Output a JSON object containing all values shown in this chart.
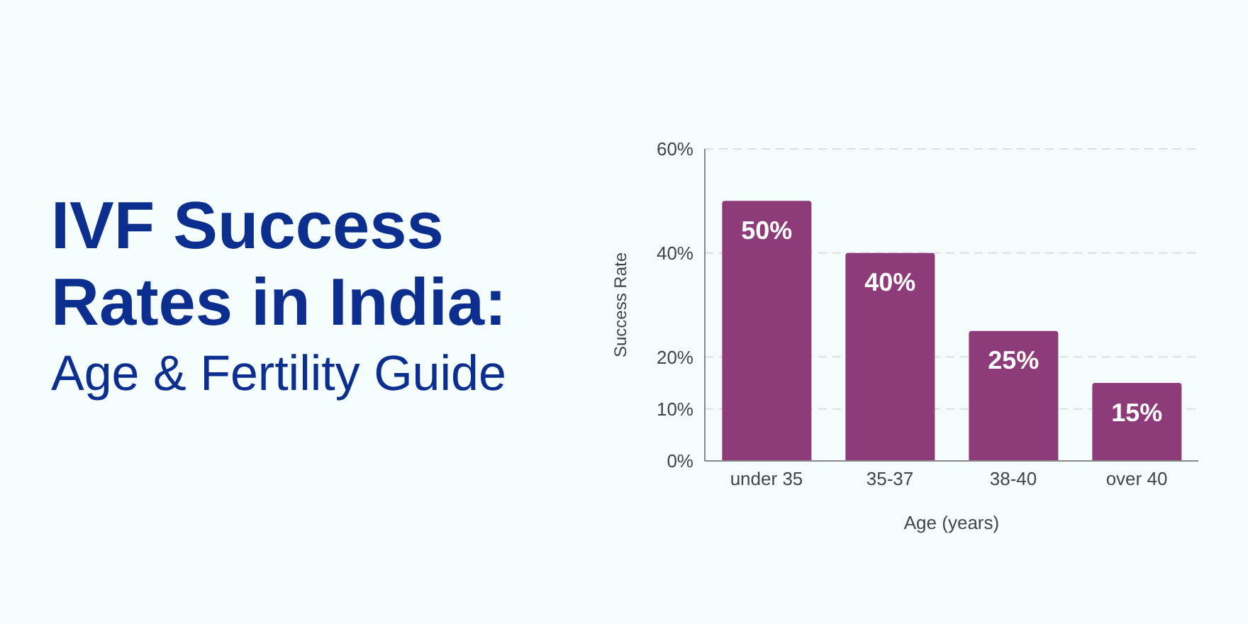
{
  "chart_data": {
    "type": "bar",
    "title": "IVF Success Rates in India:",
    "subtitle": "Age & Fertility Guide",
    "xlabel": "Age (years)",
    "ylabel": "Success Rate",
    "categories": [
      "under 35",
      "35-37",
      "38-40",
      "over 40"
    ],
    "values": [
      50,
      40,
      25,
      15
    ],
    "color": "#8e3b7a",
    "value_labels": [
      "50%",
      "40%",
      "25%",
      "15%"
    ],
    "ylim": [
      0,
      60
    ],
    "yticks": [
      {
        "value": 0,
        "label": "0%"
      },
      {
        "value": 10,
        "label": "10%"
      },
      {
        "value": 20,
        "label": "20%"
      },
      {
        "value": 40,
        "label": "40%"
      },
      {
        "value": 60,
        "label": "60%"
      }
    ],
    "grid": "y",
    "legend": false
  }
}
